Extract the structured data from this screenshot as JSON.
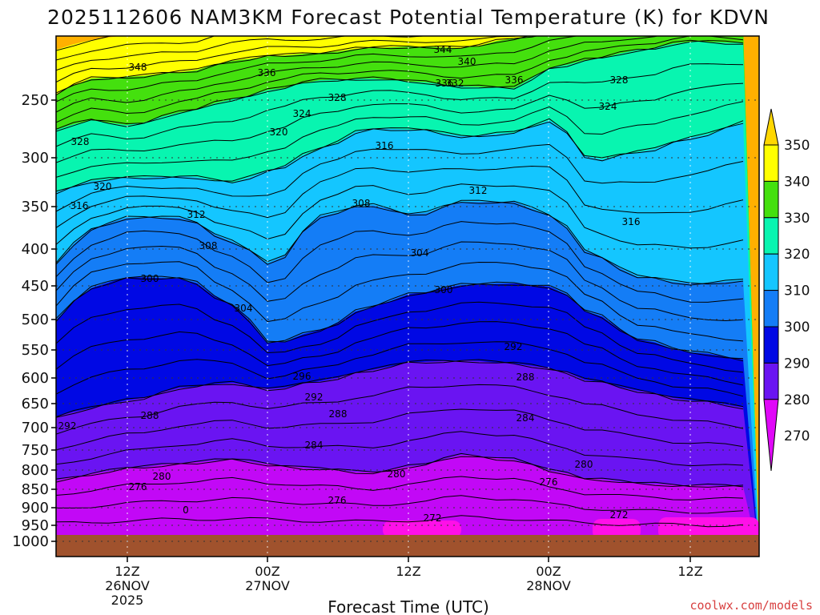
{
  "chart_data": {
    "type": "contour",
    "title": "2025112606 NAM3KM Forecast Potential Temperature (K) for KDVN",
    "xlabel": "Forecast Time (UTC)",
    "credit": "coolwx.com/models",
    "y_ticks": [
      "250",
      "300",
      "350",
      "400",
      "450",
      "500",
      "550",
      "600",
      "650",
      "700",
      "750",
      "800",
      "850",
      "900",
      "950",
      "1000"
    ],
    "x_ticks": [
      {
        "time": "12Z",
        "date": "26NOV",
        "year": "2025"
      },
      {
        "time": "00Z",
        "date": "27NOV",
        "year": ""
      },
      {
        "time": "12Z",
        "date": "",
        "year": ""
      },
      {
        "time": "00Z",
        "date": "28NOV",
        "year": ""
      },
      {
        "time": "12Z",
        "date": "",
        "year": ""
      }
    ],
    "colorbar": {
      "labels": [
        "350",
        "340",
        "330",
        "320",
        "310",
        "300",
        "290",
        "280",
        "270"
      ],
      "colors": [
        "#ffd700",
        "#ffff00",
        "#44e00e",
        "#08f5b0",
        "#14c6ff",
        "#147df6",
        "#0008e4",
        "#6a14f2",
        "#e008f8"
      ]
    },
    "bands": [
      {
        "value": 270,
        "color": "#e008f8"
      },
      {
        "value": 280,
        "color": "#c208f6"
      },
      {
        "value": 288,
        "color": "#6a14f2"
      },
      {
        "value": 292,
        "color": "#0008e4"
      },
      {
        "value": 300,
        "color": "#147df6"
      },
      {
        "value": 310,
        "color": "#14c6ff"
      },
      {
        "value": 320,
        "color": "#08f5b0"
      },
      {
        "value": 330,
        "color": "#44e00e"
      },
      {
        "value": 340,
        "color": "#ffff00"
      },
      {
        "value": 348,
        "color": "#ffb000"
      }
    ],
    "contour_labels": [
      "348",
      "344",
      "340",
      "336",
      "336",
      "332",
      "336",
      "328",
      "328",
      "324",
      "324",
      "328",
      "320",
      "316",
      "320",
      "316",
      "312",
      "312",
      "308",
      "308",
      "316",
      "304",
      "300",
      "304",
      "300",
      "292",
      "296",
      "292",
      "288",
      "288",
      "288",
      "284",
      "284",
      "292",
      "280",
      "280",
      "280",
      "276",
      "276",
      "276",
      "272",
      "272",
      "0"
    ]
  }
}
